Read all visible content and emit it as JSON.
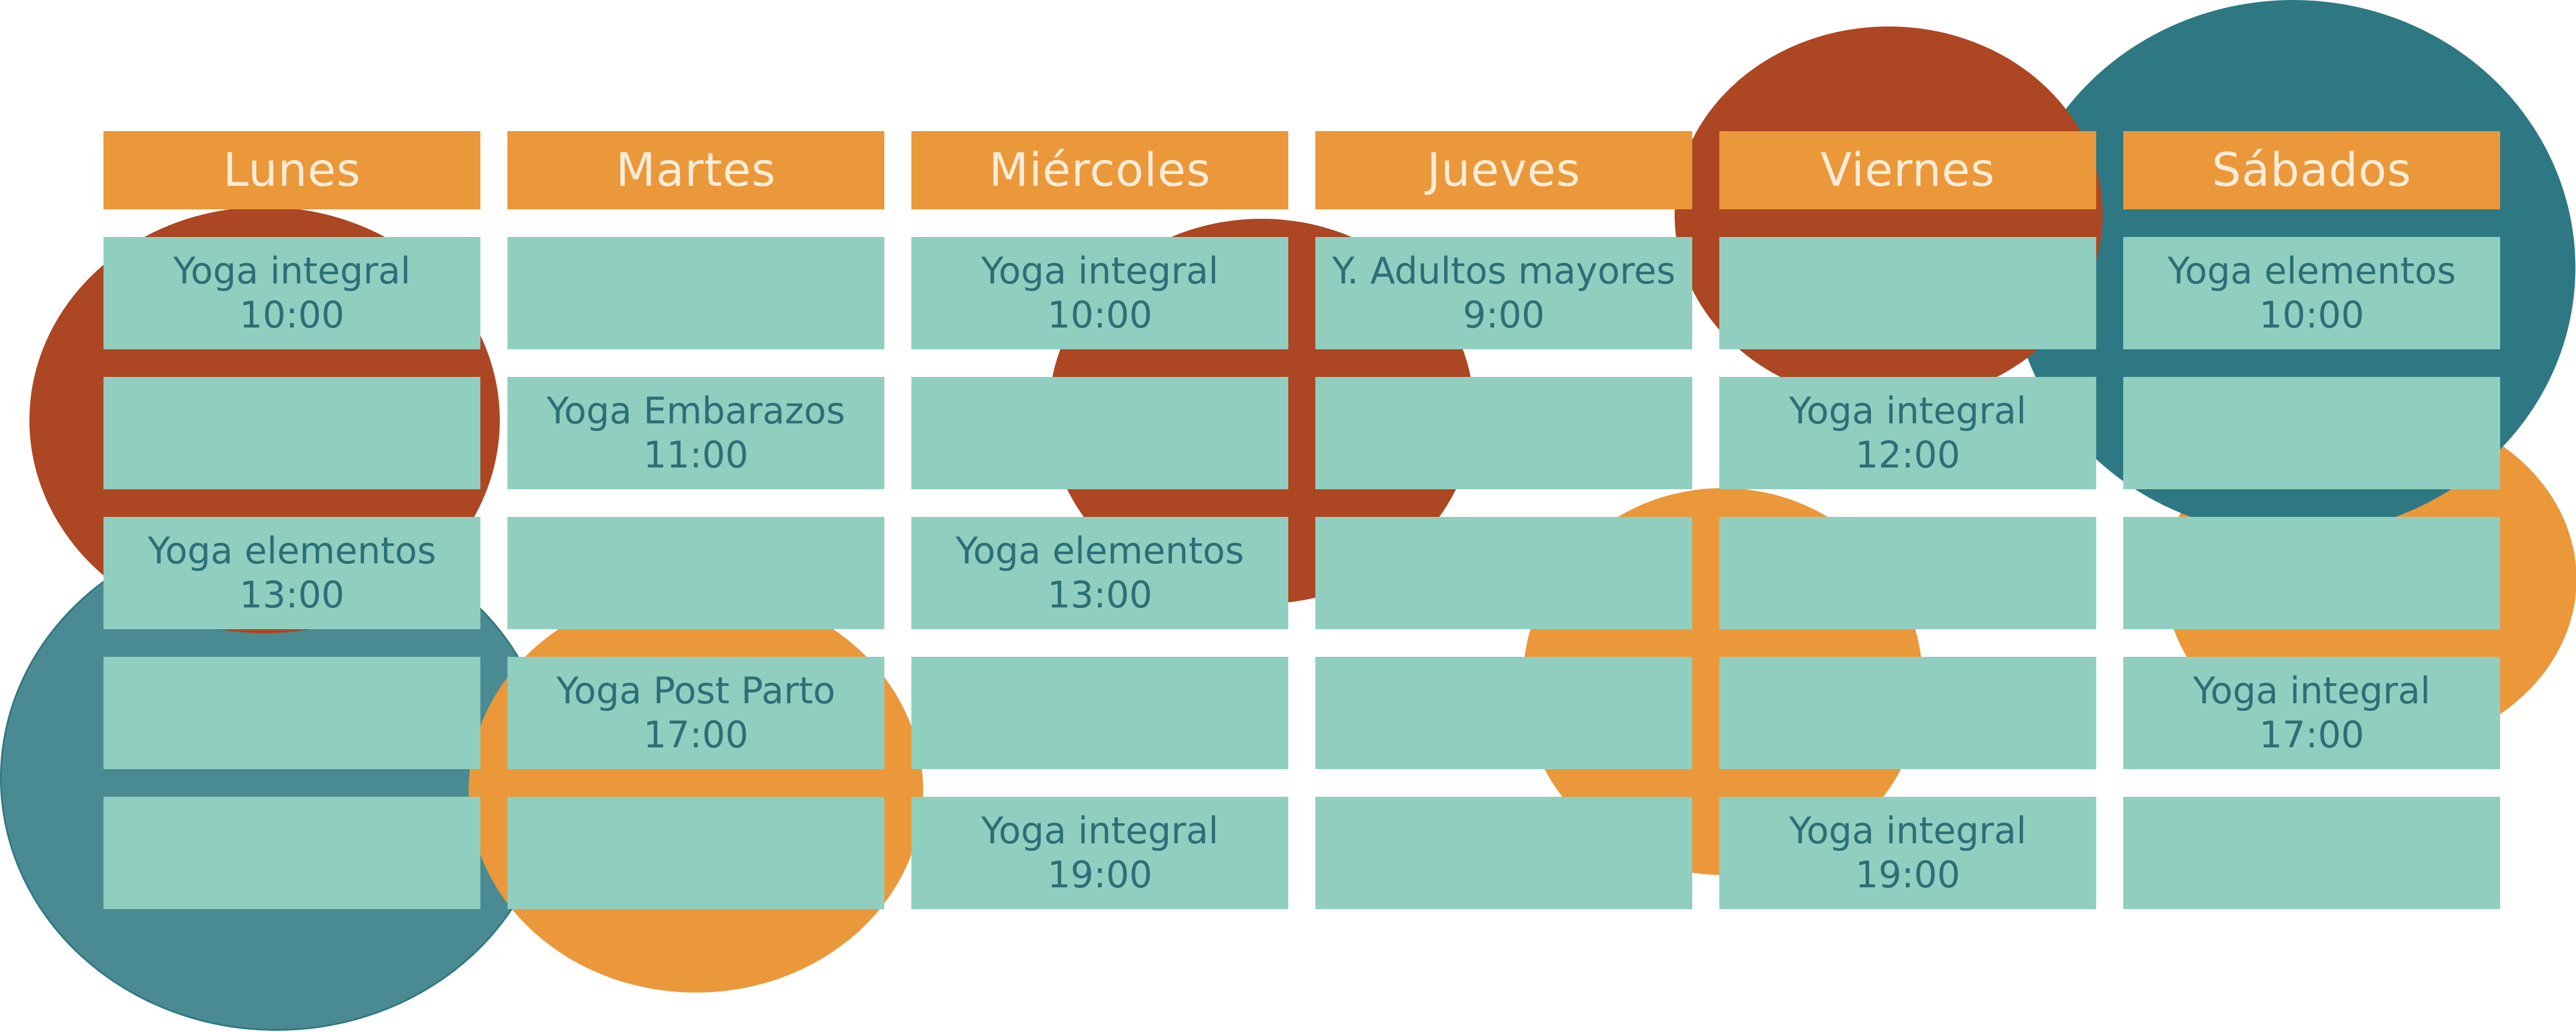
{
  "colors": {
    "header_bg": "#ea983a",
    "header_text": "#fbecd8",
    "cell_bg": "#90cfc0",
    "cell_text": "#2b6f78",
    "circle_rust": "#ad4622",
    "circle_teal_dark": "#2e7883",
    "circle_teal": "#4a8a93",
    "circle_orange": "#ea983a"
  },
  "schedule": {
    "days": [
      {
        "name": "Lunes",
        "slots": [
          {
            "class": "Yoga integral",
            "time": "10:00"
          },
          {
            "class": "",
            "time": ""
          },
          {
            "class": "Yoga elementos",
            "time": "13:00"
          },
          {
            "class": "",
            "time": ""
          },
          {
            "class": "",
            "time": ""
          }
        ]
      },
      {
        "name": "Martes",
        "slots": [
          {
            "class": "",
            "time": ""
          },
          {
            "class": "Yoga Embarazos",
            "time": "11:00"
          },
          {
            "class": "",
            "time": ""
          },
          {
            "class": "Yoga Post Parto",
            "time": "17:00"
          },
          {
            "class": "",
            "time": ""
          }
        ]
      },
      {
        "name": "Miércoles",
        "slots": [
          {
            "class": "Yoga integral",
            "time": "10:00"
          },
          {
            "class": "",
            "time": ""
          },
          {
            "class": "Yoga elementos",
            "time": "13:00"
          },
          {
            "class": "",
            "time": ""
          },
          {
            "class": "Yoga integral",
            "time": "19:00"
          }
        ]
      },
      {
        "name": "Jueves",
        "slots": [
          {
            "class": "Y. Adultos mayores",
            "time": "9:00"
          },
          {
            "class": "",
            "time": ""
          },
          {
            "class": "",
            "time": ""
          },
          {
            "class": "",
            "time": ""
          },
          {
            "class": "",
            "time": ""
          }
        ]
      },
      {
        "name": "Viernes",
        "slots": [
          {
            "class": "",
            "time": ""
          },
          {
            "class": "Yoga integral",
            "time": "12:00"
          },
          {
            "class": "",
            "time": ""
          },
          {
            "class": "",
            "time": ""
          },
          {
            "class": "Yoga integral",
            "time": "19:00"
          }
        ]
      },
      {
        "name": "Sábados",
        "slots": [
          {
            "class": "Yoga elementos",
            "time": "10:00"
          },
          {
            "class": "",
            "time": ""
          },
          {
            "class": "",
            "time": ""
          },
          {
            "class": "Yoga integral",
            "time": "17:00"
          },
          {
            "class": "",
            "time": ""
          }
        ]
      }
    ]
  }
}
